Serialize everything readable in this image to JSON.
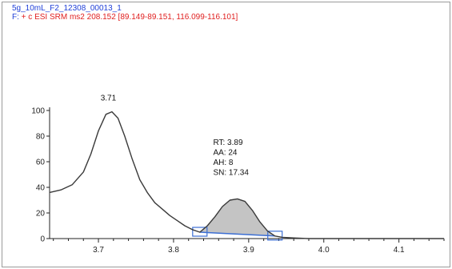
{
  "header": {
    "filename": "5g_10mL_F2_12308_00013_1",
    "filter_prefix": "F:",
    "filter": "+ c ESI SRM ms2 208.152 [89.149-89.151, 116.099-116.101]"
  },
  "chart_data": {
    "type": "line",
    "x_range": [
      3.635,
      4.16
    ],
    "y_range": [
      0,
      100
    ],
    "x_ticks": [
      "3.7",
      "3.8",
      "3.9",
      "4.0",
      "4.1"
    ],
    "y_ticks": [
      "0",
      "20",
      "40",
      "60",
      "80",
      "100"
    ],
    "series": [
      {
        "points": [
          [
            3.635,
            36
          ],
          [
            3.65,
            38
          ],
          [
            3.665,
            42
          ],
          [
            3.68,
            52
          ],
          [
            3.69,
            66
          ],
          [
            3.7,
            84
          ],
          [
            3.71,
            97
          ],
          [
            3.718,
            99
          ],
          [
            3.726,
            94
          ],
          [
            3.735,
            80
          ],
          [
            3.745,
            62
          ],
          [
            3.755,
            46
          ],
          [
            3.765,
            36
          ],
          [
            3.775,
            28
          ],
          [
            3.785,
            23
          ],
          [
            3.795,
            18
          ],
          [
            3.805,
            14
          ],
          [
            3.815,
            10
          ],
          [
            3.825,
            7
          ],
          [
            3.835,
            5
          ],
          [
            3.845,
            10
          ],
          [
            3.855,
            17
          ],
          [
            3.865,
            25
          ],
          [
            3.875,
            30
          ],
          [
            3.885,
            31
          ],
          [
            3.895,
            29
          ],
          [
            3.905,
            22
          ],
          [
            3.915,
            13
          ],
          [
            3.925,
            6
          ],
          [
            3.935,
            2
          ],
          [
            3.945,
            1
          ],
          [
            3.96,
            0.5
          ],
          [
            3.98,
            0
          ],
          [
            4.0,
            0
          ],
          [
            4.16,
            0
          ]
        ]
      }
    ],
    "peak_labels": [
      {
        "x": 3.71,
        "y": 99,
        "label": "3.71"
      }
    ],
    "integrated_peak": {
      "x_start": 3.835,
      "x_end": 3.935,
      "baseline_start": 5,
      "baseline_end": 2,
      "annotation": [
        "RT: 3.89",
        "AA: 24",
        "AH: 8",
        "SN: 17.34"
      ],
      "annotation_x": 3.89
    },
    "colors": {
      "trace": "#3a3a3a",
      "fill": "#c4c4c4",
      "baseline": "#3c6fd4"
    }
  }
}
